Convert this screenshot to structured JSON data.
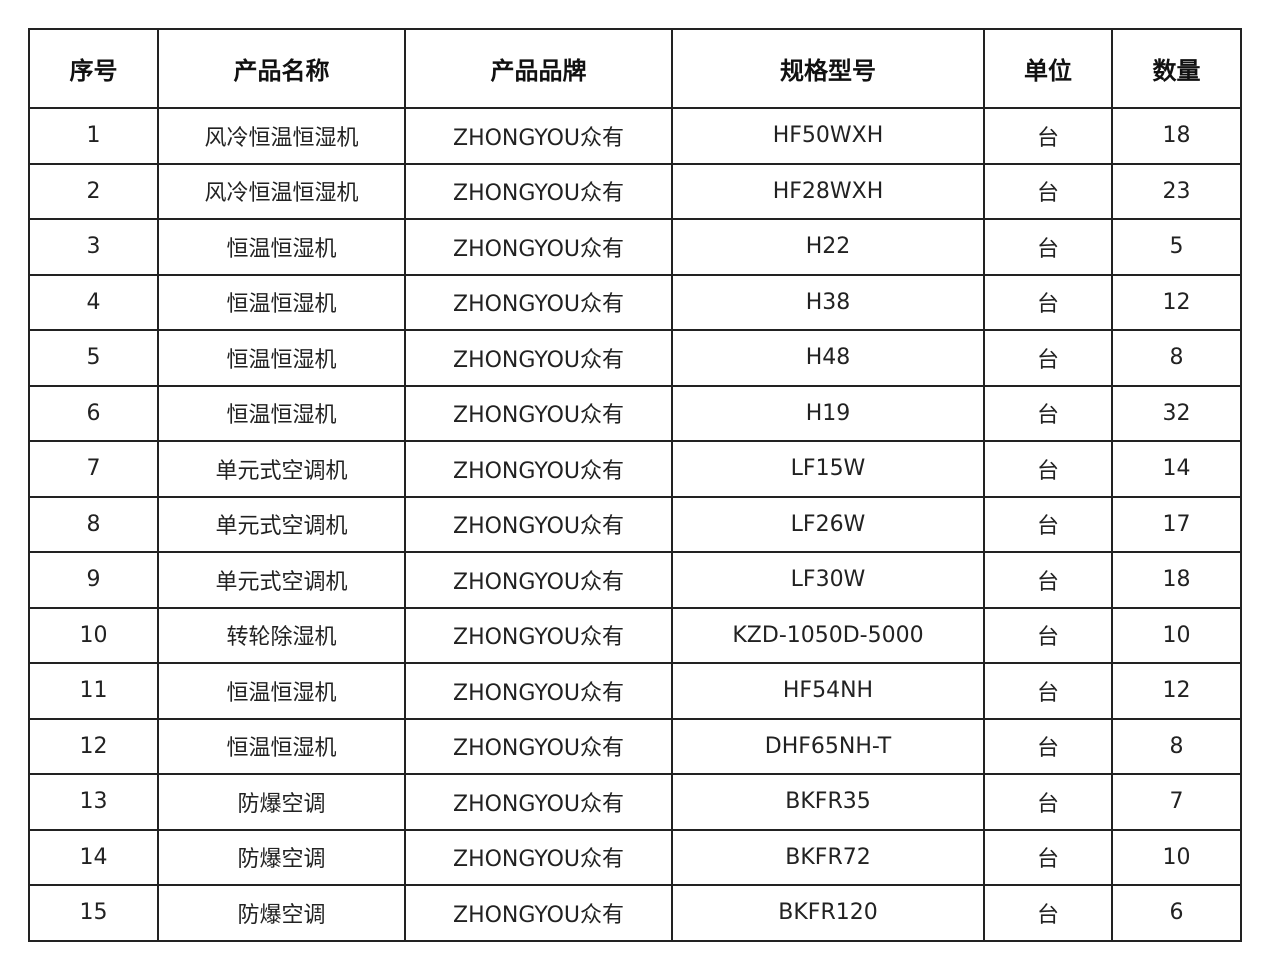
{
  "table": {
    "headers": [
      "序号",
      "产品名称",
      "产品品牌",
      "规格型号",
      "单位",
      "数量"
    ],
    "rows": [
      [
        "1",
        "风冷恒温恒湿机",
        "ZHONGYOU众有",
        "HF50WXH",
        "台",
        "18"
      ],
      [
        "2",
        "风冷恒温恒湿机",
        "ZHONGYOU众有",
        "HF28WXH",
        "台",
        "23"
      ],
      [
        "3",
        "恒温恒湿机",
        "ZHONGYOU众有",
        "H22",
        "台",
        "5"
      ],
      [
        "4",
        "恒温恒湿机",
        "ZHONGYOU众有",
        "H38",
        "台",
        "12"
      ],
      [
        "5",
        "恒温恒湿机",
        "ZHONGYOU众有",
        "H48",
        "台",
        "8"
      ],
      [
        "6",
        "恒温恒湿机",
        "ZHONGYOU众有",
        "H19",
        "台",
        "32"
      ],
      [
        "7",
        "单元式空调机",
        "ZHONGYOU众有",
        "LF15W",
        "台",
        "14"
      ],
      [
        "8",
        "单元式空调机",
        "ZHONGYOU众有",
        "LF26W",
        "台",
        "17"
      ],
      [
        "9",
        "单元式空调机",
        "ZHONGYOU众有",
        "LF30W",
        "台",
        "18"
      ],
      [
        "10",
        "转轮除湿机",
        "ZHONGYOU众有",
        "KZD-1050D-5000",
        "台",
        "10"
      ],
      [
        "11",
        "恒温恒湿机",
        "ZHONGYOU众有",
        "HF54NH",
        "台",
        "12"
      ],
      [
        "12",
        "恒温恒湿机",
        "ZHONGYOU众有",
        "DHF65NH-T",
        "台",
        "8"
      ],
      [
        "13",
        "防爆空调",
        "ZHONGYOU众有",
        "BKFR35",
        "台",
        "7"
      ],
      [
        "14",
        "防爆空调",
        "ZHONGYOU众有",
        "BKFR72",
        "台",
        "10"
      ],
      [
        "15",
        "防爆空调",
        "ZHONGYOU众有",
        "BKFR120",
        "台",
        "6"
      ]
    ]
  }
}
